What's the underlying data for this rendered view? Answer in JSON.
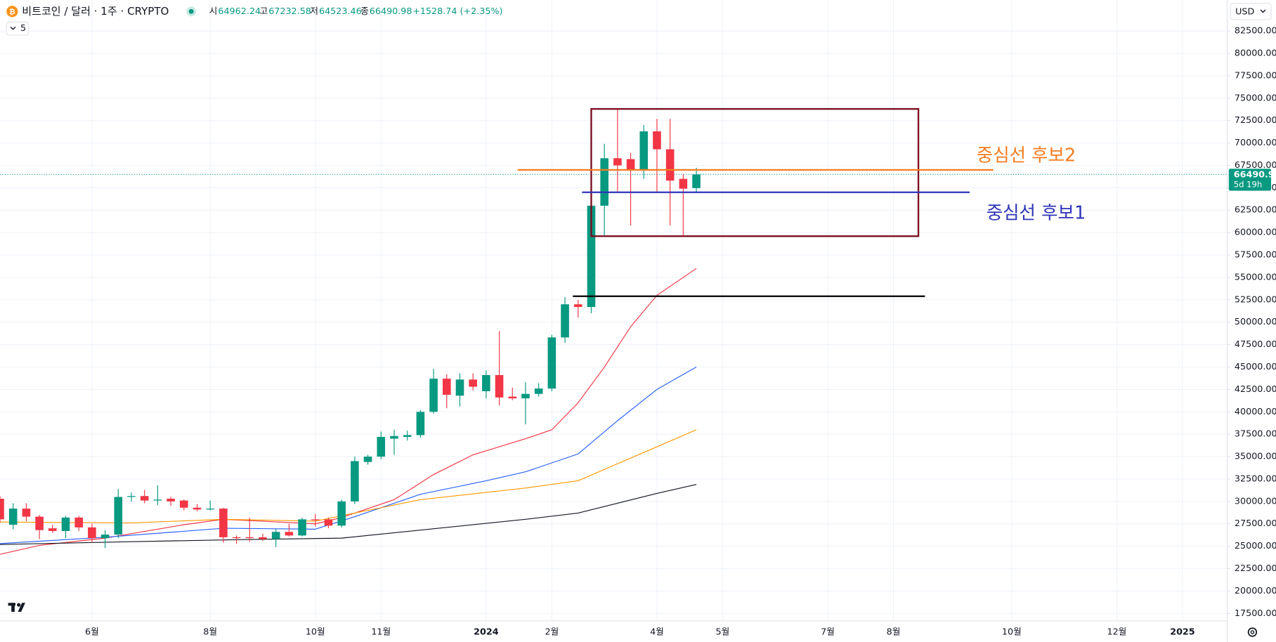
{
  "chart_data": {
    "type": "candlestick",
    "title": "비트코인 / 달러 · 1주 · CRYPTO",
    "ohlc_labels": [
      "시",
      "고",
      "저",
      "종"
    ],
    "change": "+1528.74 (+2.35%)",
    "interval": "5",
    "currency": "USD",
    "countdown": "5d 19h",
    "up_color": "#089981",
    "down_color": "#f23645",
    "x": [
      0,
      1,
      2,
      3,
      4,
      5,
      6,
      7,
      8,
      9,
      10,
      11,
      12,
      13,
      14,
      15,
      16,
      17,
      18,
      19,
      20,
      21,
      22,
      23,
      24,
      25,
      26,
      27,
      28,
      29,
      30,
      31,
      32,
      33,
      34,
      35,
      36,
      37,
      38,
      39,
      40,
      41,
      42,
      43,
      44,
      45,
      46,
      47,
      48,
      49,
      50,
      51,
      52,
      53
    ],
    "open": [
      30300,
      27400,
      29200,
      28300,
      27000,
      26700,
      28200,
      27100,
      25900,
      26300,
      30500,
      30600,
      30100,
      30300,
      30100,
      29300,
      29100,
      29200,
      26000,
      26000,
      26000,
      25800,
      26600,
      26200,
      28000,
      28000,
      27300,
      30000,
      34400,
      35000,
      37000,
      37200,
      37400,
      40000,
      43700,
      41800,
      43600,
      42300,
      44100,
      41700,
      41500,
      42000,
      42600,
      48300,
      52000,
      51700,
      63000,
      68300,
      68200,
      67000,
      71300,
      69300,
      66000,
      64962.24
    ],
    "high": [
      30600,
      29800,
      29800,
      28500,
      27400,
      28400,
      28400,
      27500,
      26800,
      31400,
      31000,
      31300,
      31800,
      30500,
      30200,
      29700,
      30100,
      29300,
      26200,
      28200,
      26400,
      26900,
      27500,
      28200,
      28600,
      28200,
      30200,
      35000,
      35200,
      37800,
      38000,
      37900,
      40200,
      44800,
      44200,
      44300,
      44300,
      44600,
      49000,
      42700,
      43300,
      43200,
      48600,
      52800,
      52500,
      63900,
      69900,
      73800,
      68900,
      72000,
      72700,
      72700,
      66500,
      67232.58
    ],
    "low": [
      27600,
      26900,
      27800,
      25800,
      26500,
      25900,
      26700,
      25400,
      24800,
      25900,
      30000,
      29800,
      29600,
      29500,
      29000,
      28900,
      29000,
      25400,
      25300,
      25500,
      25600,
      24900,
      26100,
      26100,
      27200,
      27000,
      27100,
      29700,
      34100,
      34700,
      35200,
      36800,
      37100,
      39800,
      40400,
      40600,
      42400,
      41500,
      40700,
      41300,
      38600,
      41700,
      42300,
      47700,
      50500,
      51000,
      59600,
      64600,
      60800,
      66000,
      64500,
      60800,
      59700,
      64523.46
    ],
    "close": [
      28000,
      29200,
      28300,
      26800,
      26700,
      28200,
      27100,
      25900,
      26300,
      30500,
      30600,
      30100,
      30200,
      30000,
      29300,
      29100,
      29200,
      26000,
      25900,
      25900,
      25800,
      26600,
      26200,
      28000,
      27900,
      27300,
      30000,
      34500,
      35000,
      37200,
      37300,
      37400,
      40000,
      43700,
      41900,
      43600,
      42800,
      44100,
      41600,
      41500,
      42000,
      42600,
      48300,
      52000,
      51700,
      63000,
      68300,
      67500,
      67000,
      71300,
      69300,
      65800,
      64900,
      66490.98
    ],
    "moving_averages": [
      {
        "color": "#f23645",
        "x": [
          0,
          3,
          8,
          14,
          17,
          24,
          26,
          30,
          33,
          36,
          40,
          42,
          44,
          46,
          48,
          50,
          53
        ],
        "values": [
          24100,
          25100,
          25900,
          27400,
          28000,
          27500,
          28200,
          30200,
          33000,
          35200,
          37000,
          38000,
          41000,
          45000,
          49500,
          53000,
          56000
        ]
      },
      {
        "color": "#2962ff",
        "x": [
          0,
          8,
          17,
          24,
          27,
          32,
          37,
          40,
          44,
          47,
          50,
          53
        ],
        "values": [
          25300,
          26000,
          27000,
          26900,
          28300,
          30800,
          32300,
          33300,
          35300,
          39000,
          42500,
          45000
        ]
      },
      {
        "color": "#ff9800",
        "x": [
          0,
          10,
          17,
          24,
          27,
          32,
          40,
          44,
          47,
          50,
          53
        ],
        "values": [
          27700,
          27600,
          28000,
          27800,
          28700,
          30200,
          31500,
          32300,
          34200,
          36100,
          38000
        ]
      },
      {
        "color": "#131722",
        "x": [
          0,
          10,
          17,
          26,
          32,
          40,
          44,
          47,
          50,
          53
        ],
        "values": [
          25200,
          25500,
          25700,
          25900,
          26800,
          28000,
          28700,
          29800,
          30900,
          31900
        ]
      }
    ],
    "box": {
      "color": "#7a0a1c",
      "x": [
        45.0,
        69.9
      ],
      "y": [
        59600,
        73800
      ]
    },
    "hlines": [
      {
        "color": "#f57c20",
        "y": 67000,
        "x": [
          39.4,
          75.6
        ],
        "text": "중심선 후보2"
      },
      {
        "color": "#2e35b8",
        "y": 64500,
        "x": [
          44.3,
          73.8
        ],
        "text": "중심선 후보1"
      },
      {
        "color": "#000000",
        "y": 52900,
        "x": [
          43.6,
          70.4
        ]
      }
    ],
    "xlim": [
      0,
      93.4
    ],
    "ylim": [
      16680,
      85950
    ],
    "xticks": [
      {
        "value": 7,
        "label": "6월"
      },
      {
        "value": 16,
        "label": "8월"
      },
      {
        "value": 24,
        "label": "10월"
      },
      {
        "value": 29,
        "label": "11월"
      },
      {
        "value": 37,
        "label": "2024"
      },
      {
        "value": 42,
        "label": "2월"
      },
      {
        "value": 50,
        "label": "4월"
      },
      {
        "value": 55,
        "label": "5월"
      },
      {
        "value": 63,
        "label": "7월"
      },
      {
        "value": 68,
        "label": "8월"
      },
      {
        "value": 77,
        "label": "10월"
      },
      {
        "value": 85,
        "label": "12월"
      },
      {
        "value": 90,
        "label": "2025"
      }
    ],
    "yticks": [
      {
        "value": 17500,
        "label": "17500.00"
      },
      {
        "value": 20000,
        "label": "20000.00"
      },
      {
        "value": 22500,
        "label": "22500.00"
      },
      {
        "value": 25000,
        "label": "25000.00"
      },
      {
        "value": 27500,
        "label": "27500.00"
      },
      {
        "value": 30000,
        "label": "30000.00"
      },
      {
        "value": 32500,
        "label": "32500.00"
      },
      {
        "value": 35000,
        "label": "35000.00"
      },
      {
        "value": 37500,
        "label": "37500.00"
      },
      {
        "value": 40000,
        "label": "40000.00"
      },
      {
        "value": 42500,
        "label": "42500.00"
      },
      {
        "value": 45000,
        "label": "45000.00"
      },
      {
        "value": 47500,
        "label": "47500.00"
      },
      {
        "value": 50000,
        "label": "50000.00"
      },
      {
        "value": 52500,
        "label": "52500.00"
      },
      {
        "value": 55000,
        "label": "55000.00"
      },
      {
        "value": 57500,
        "label": "57500.00"
      },
      {
        "value": 60000,
        "label": "60000.00"
      },
      {
        "value": 62500,
        "label": "62500.00"
      },
      {
        "value": 65000,
        "label": "65000.00"
      },
      {
        "value": 67500,
        "label": "67500.00"
      },
      {
        "value": 70000,
        "label": "70000.00"
      },
      {
        "value": 72500,
        "label": "72500.00"
      },
      {
        "value": 75000,
        "label": "75000.00"
      },
      {
        "value": 77500,
        "label": "77500.00"
      },
      {
        "value": 80000,
        "label": "80000.00"
      },
      {
        "value": 82500,
        "label": "82500.00"
      }
    ],
    "grid": true
  }
}
